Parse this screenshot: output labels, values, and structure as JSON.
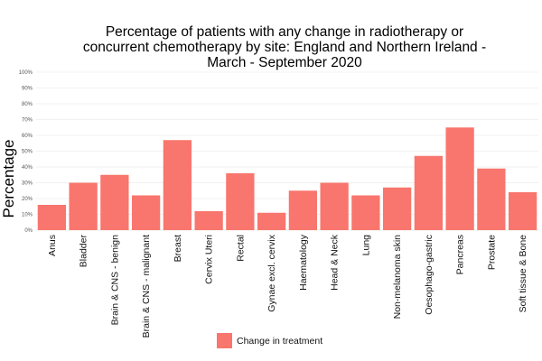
{
  "chart_data": {
    "type": "bar",
    "title_lines": [
      "Percentage of patients with any change in radiotherapy or",
      "concurrent chemotherapy by site: England and Northern Ireland -",
      "March - September 2020"
    ],
    "ylabel": "Percentage",
    "xlabel": "",
    "ylim": [
      0,
      100
    ],
    "yticks": [
      "0%",
      "10%",
      "20%",
      "30%",
      "40%",
      "50%",
      "60%",
      "70%",
      "80%",
      "90%",
      "100%"
    ],
    "grid": true,
    "legend_position": "bottom",
    "categories": [
      "Anus",
      "Bladder",
      "Brain & CNS - benign",
      "Brain & CNS - malignant",
      "Breast",
      "Cervix Uteri",
      "Rectal",
      "Gynae excl. cervix",
      "Haematology",
      "Head & Neck",
      "Lung",
      "Non-melanoma skin",
      "Oesophago-gastric",
      "Pancreas",
      "Prostate",
      "Soft tissue & Bone"
    ],
    "series": [
      {
        "name": "Change in treatment",
        "color": "#f8766d",
        "values": [
          16,
          30,
          35,
          22,
          57,
          12,
          36,
          11,
          25,
          30,
          22,
          27,
          47,
          65,
          39,
          24
        ]
      }
    ]
  }
}
